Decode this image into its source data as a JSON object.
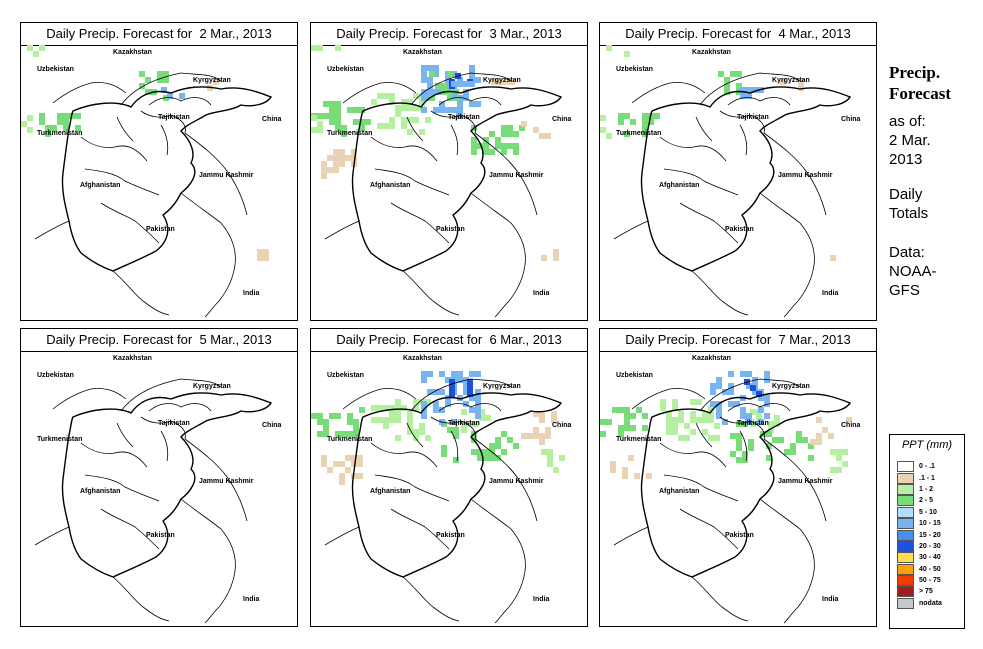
{
  "panels": [
    {
      "title": "Daily Precip. Forecast for  2 Mar., 2013",
      "intensity": 1
    },
    {
      "title": "Daily Precip. Forecast for  3 Mar., 2013",
      "intensity": 2
    },
    {
      "title": "Daily Precip. Forecast for  4 Mar., 2013",
      "intensity": 1
    },
    {
      "title": "Daily Precip. Forecast for  5 Mar., 2013",
      "intensity": 0
    },
    {
      "title": "Daily Precip. Forecast for  6 Mar., 2013",
      "intensity": 3
    },
    {
      "title": "Daily Precip. Forecast for  7 Mar., 2013",
      "intensity": 3
    }
  ],
  "map_labels": {
    "kazakhstan": "Kazakhstan",
    "uzbekistan": "Uzbekistan",
    "kyrgyzstan": "Kyrgyzstan",
    "tajikistan": "Tajikistan",
    "turkmenistan": "Turkmenistan",
    "china": "China",
    "jammu": "Jammu Kashmir",
    "afghanistan": "Afghanistan",
    "pakistan": "Pakistan",
    "india": "India"
  },
  "sidebar": {
    "heading_line1": "Precip.",
    "heading_line2": "Forecast",
    "asof_line1": "as of:",
    "asof_line2": "2 Mar.",
    "asof_line3": "2013",
    "daily_line1": "Daily",
    "daily_line2": "Totals",
    "data_line1": "Data:",
    "data_line2": "NOAA-",
    "data_line3": "GFS"
  },
  "legend": {
    "title": "PPT (mm)",
    "items": [
      {
        "label": "0 - .1",
        "color": "#ffffff"
      },
      {
        "label": ".1 - 1",
        "color": "#e8d4b4"
      },
      {
        "label": "1 - 2",
        "color": "#b4f0a0"
      },
      {
        "label": "2 - 5",
        "color": "#78dc78"
      },
      {
        "label": "5 - 10",
        "color": "#b4dcf8"
      },
      {
        "label": "10 - 15",
        "color": "#78b4f0"
      },
      {
        "label": "15 - 20",
        "color": "#4690eb"
      },
      {
        "label": "20 - 30",
        "color": "#1e50dc"
      },
      {
        "label": "30 - 40",
        "color": "#ffdc50"
      },
      {
        "label": "40 - 50",
        "color": "#ffa000"
      },
      {
        "label": "50 - 75",
        "color": "#f03c00"
      },
      {
        "label": "> 75",
        "color": "#a01e1e"
      },
      {
        "label": "nodata",
        "color": "#c8c8c8"
      }
    ]
  }
}
